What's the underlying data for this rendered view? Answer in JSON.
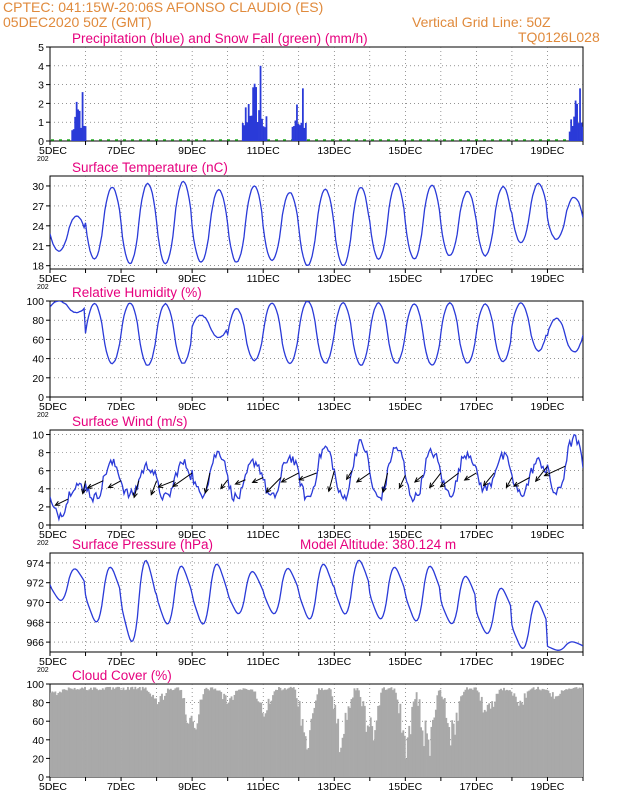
{
  "header": {
    "line1": "CPTEC:   041:15W-20:06S   AFONSO CLAUDIO (ES)",
    "line2_left": "05DEC2020 50Z (GMT)",
    "line2_right": "Vertical Grid Line: 50Z",
    "code": "TQ0126L028"
  },
  "x_labels": [
    "5DEC",
    "7DEC",
    "9DEC",
    "11DEC",
    "13DEC",
    "15DEC",
    "17DEC",
    "19DEC"
  ],
  "x_sub_label": "202",
  "colors": {
    "series": "#2a3ad8",
    "title": "#e6007e",
    "header": "#e08a3c",
    "snow": "#22aa22",
    "cloud": "#a9a9a9"
  },
  "chart_data": [
    {
      "type": "bar",
      "title": "Precipitation (blue) and Snow Fall (green) (mm/h)",
      "ylim": [
        0,
        5
      ],
      "yticks": [
        "0",
        "1",
        "2",
        "3",
        "4",
        "5"
      ],
      "x_range_days": [
        0,
        15
      ],
      "bursts": [
        {
          "x": [
            0.6,
            1.0
          ],
          "peak": 2.6
        },
        {
          "x": [
            5.4,
            6.1
          ],
          "peak": 4.0
        },
        {
          "x": [
            6.8,
            7.2
          ],
          "peak": 2.8
        },
        {
          "x": [
            14.6,
            15.0
          ],
          "peak": 2.8
        }
      ],
      "snow_mm_h": 0
    },
    {
      "type": "line",
      "title": "Surface Temperature (nC)",
      "ylim": [
        17.5,
        31.5
      ],
      "yticks": [
        "18",
        "21",
        "24",
        "27",
        "30"
      ],
      "daily": [
        {
          "max": 25.5,
          "min": 20.2
        },
        {
          "max": 29.8,
          "min": 19.0
        },
        {
          "max": 30.4,
          "min": 18.3
        },
        {
          "max": 30.7,
          "min": 18.3
        },
        {
          "max": 29.5,
          "min": 18.5
        },
        {
          "max": 30.0,
          "min": 18.5
        },
        {
          "max": 29.0,
          "min": 18.8
        },
        {
          "max": 29.5,
          "min": 18.0
        },
        {
          "max": 29.8,
          "min": 18.0
        },
        {
          "max": 30.4,
          "min": 19.0
        },
        {
          "max": 30.1,
          "min": 19.0
        },
        {
          "max": 29.2,
          "min": 19.5
        },
        {
          "max": 29.9,
          "min": 19.5
        },
        {
          "max": 30.4,
          "min": 21.5
        },
        {
          "max": 28.3,
          "min": 22.0
        }
      ]
    },
    {
      "type": "line",
      "title": "Relative Humidity (%)",
      "ylim": [
        0,
        100
      ],
      "yticks": [
        "0",
        "20",
        "40",
        "60",
        "80",
        "100"
      ],
      "daily": [
        {
          "max": 100,
          "min": 88
        },
        {
          "max": 97,
          "min": 35
        },
        {
          "max": 98,
          "min": 33
        },
        {
          "max": 97,
          "min": 35
        },
        {
          "max": 85,
          "min": 62
        },
        {
          "max": 92,
          "min": 38
        },
        {
          "max": 98,
          "min": 35
        },
        {
          "max": 100,
          "min": 35
        },
        {
          "max": 98,
          "min": 33
        },
        {
          "max": 98,
          "min": 35
        },
        {
          "max": 97,
          "min": 33
        },
        {
          "max": 98,
          "min": 35
        },
        {
          "max": 97,
          "min": 37
        },
        {
          "max": 98,
          "min": 48
        },
        {
          "max": 82,
          "min": 47
        }
      ]
    },
    {
      "type": "line",
      "title": "Surface Wind (m/s)",
      "ylim": [
        0,
        10.5
      ],
      "yticks": [
        "0",
        "2",
        "4",
        "6",
        "8",
        "10"
      ],
      "daily": [
        {
          "max": 4.5,
          "min": 1.2
        },
        {
          "max": 6.8,
          "min": 3.0
        },
        {
          "max": 6.5,
          "min": 3.3
        },
        {
          "max": 6.8,
          "min": 3.0
        },
        {
          "max": 8.0,
          "min": 3.5
        },
        {
          "max": 7.0,
          "min": 3.0
        },
        {
          "max": 7.5,
          "min": 3.0
        },
        {
          "max": 8.5,
          "min": 3.0
        },
        {
          "max": 9.0,
          "min": 3.0
        },
        {
          "max": 8.5,
          "min": 3.0
        },
        {
          "max": 8.0,
          "min": 3.0
        },
        {
          "max": 8.0,
          "min": 3.5
        },
        {
          "max": 7.5,
          "min": 4.0
        },
        {
          "max": 7.0,
          "min": 3.5
        },
        {
          "max": 9.5,
          "min": 3.5
        }
      ],
      "arrows_direction": "mostly toward southwest"
    },
    {
      "type": "line",
      "title": "Surface Pressure (hPa)",
      "annotation": "Model Altitude: 380.124 m",
      "ylim": [
        965,
        975
      ],
      "yticks": [
        "966",
        "968",
        "970",
        "972",
        "974"
      ],
      "daily": [
        {
          "max": 973.3,
          "min": 970.3
        },
        {
          "max": 973.4,
          "min": 968.2
        },
        {
          "max": 974.0,
          "min": 966.3
        },
        {
          "max": 973.5,
          "min": 968.0
        },
        {
          "max": 973.7,
          "min": 968.0
        },
        {
          "max": 973.0,
          "min": 969.0
        },
        {
          "max": 973.3,
          "min": 969.0
        },
        {
          "max": 973.7,
          "min": 968.5
        },
        {
          "max": 974.1,
          "min": 969.0
        },
        {
          "max": 973.4,
          "min": 968.5
        },
        {
          "max": 973.5,
          "min": 968.3
        },
        {
          "max": 972.5,
          "min": 968.0
        },
        {
          "max": 971.3,
          "min": 967.0
        },
        {
          "max": 970.0,
          "min": 965.5
        },
        {
          "max": 966.0,
          "min": 965.2
        }
      ]
    },
    {
      "type": "area",
      "title": "Cloud Cover (%)",
      "ylim": [
        0,
        100
      ],
      "yticks": [
        "0",
        "20",
        "40",
        "60",
        "80",
        "100"
      ],
      "base_level": 97,
      "dips": [
        {
          "day": 3.0,
          "min": 70
        },
        {
          "day": 4.0,
          "min": 22
        },
        {
          "day": 5.0,
          "min": 70
        },
        {
          "day": 6.0,
          "min": 60
        },
        {
          "day": 7.2,
          "min": 20
        },
        {
          "day": 8.2,
          "min": 3
        },
        {
          "day": 9.0,
          "min": 15
        },
        {
          "day": 10.0,
          "min": 15
        },
        {
          "day": 10.6,
          "min": 5
        },
        {
          "day": 11.3,
          "min": 20
        },
        {
          "day": 12.3,
          "min": 50
        },
        {
          "day": 13.2,
          "min": 70
        },
        {
          "day": 14.2,
          "min": 80
        }
      ]
    }
  ]
}
